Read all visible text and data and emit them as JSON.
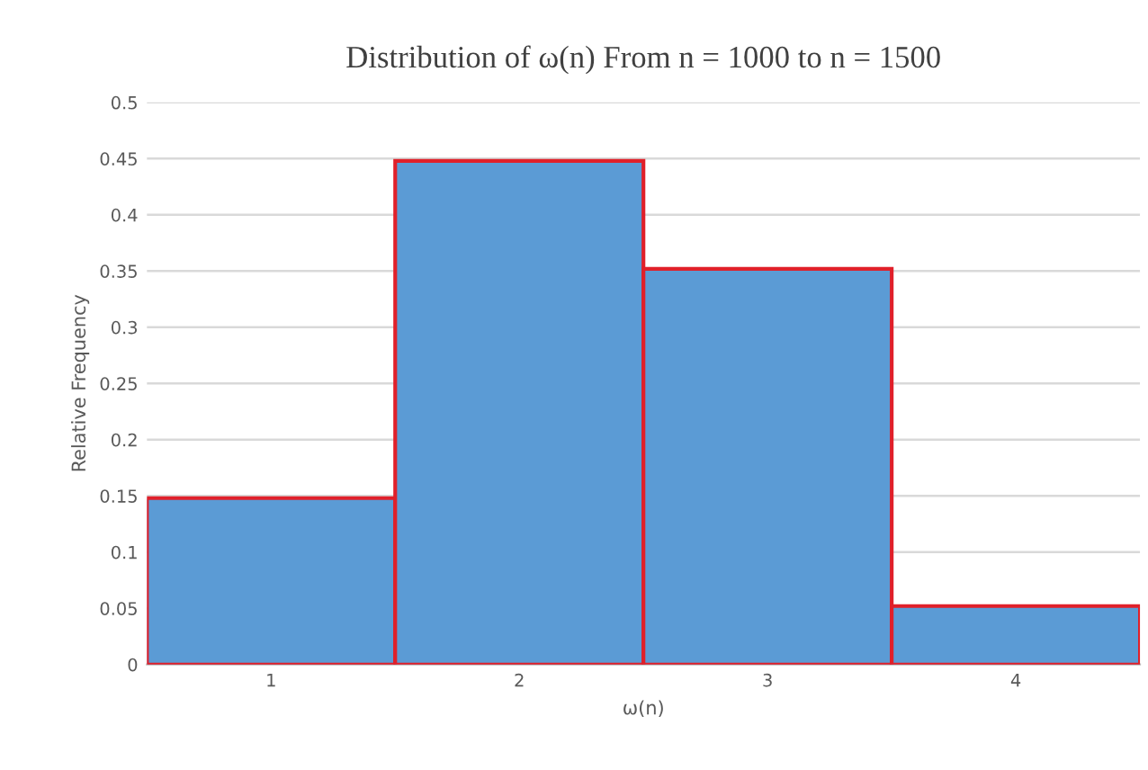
{
  "chart_data": {
    "type": "bar",
    "title": "Distribution of ω(n) From n = 1000 to n = 1500",
    "xlabel": "ω(n)",
    "ylabel": "Relative Frequency",
    "categories": [
      "1",
      "2",
      "3",
      "4"
    ],
    "series": [
      {
        "color": "#5b9bd5",
        "values": [
          0.148,
          0.448,
          0.352,
          0.052
        ]
      }
    ],
    "ylim": [
      0,
      0.5
    ],
    "yticks": [
      0,
      0.05,
      0.1,
      0.15,
      0.2,
      0.25,
      0.3,
      0.35,
      0.4,
      0.45,
      0.5
    ],
    "grid": "y",
    "legend": false
  }
}
